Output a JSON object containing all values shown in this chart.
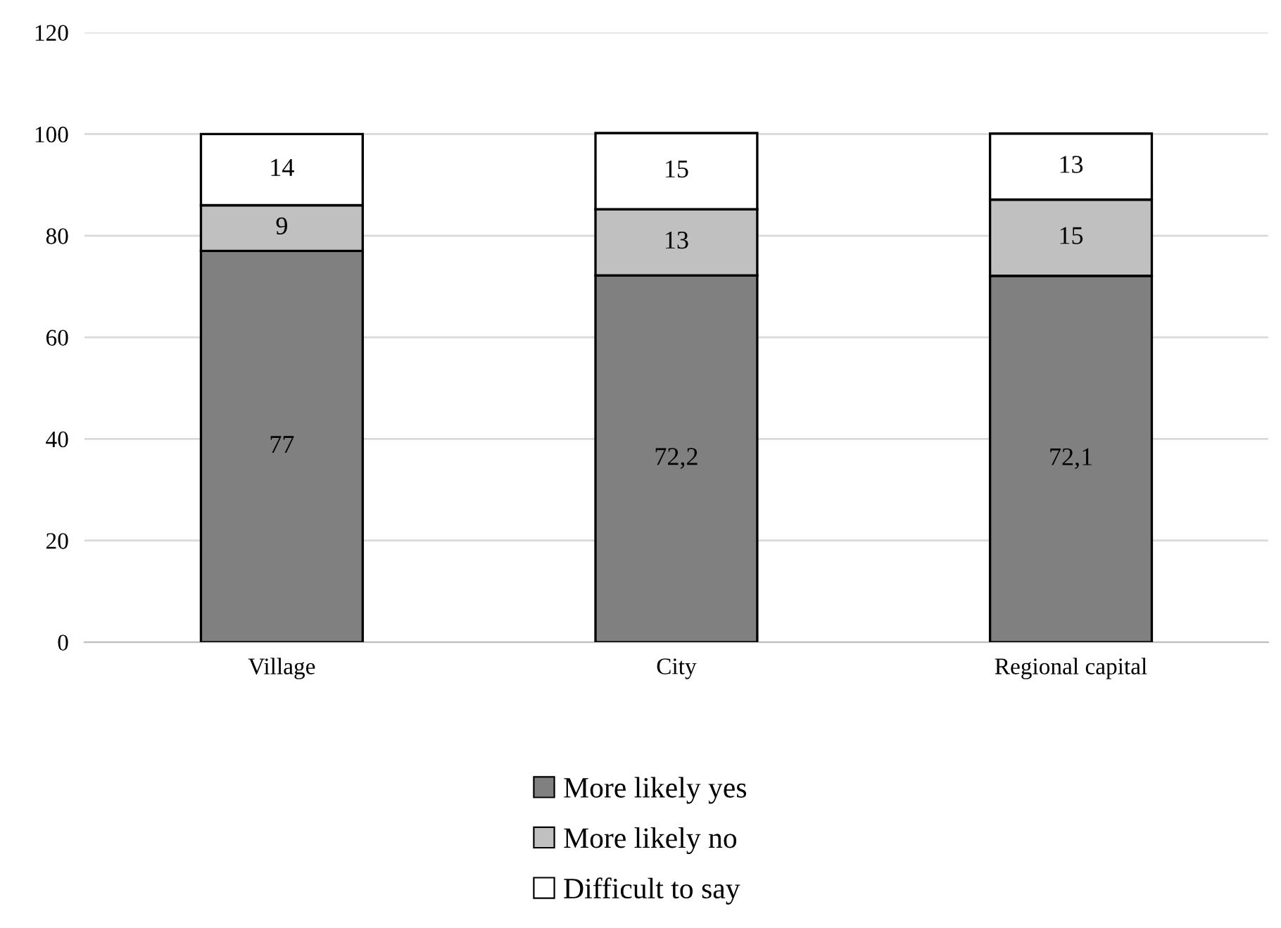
{
  "chart_data": {
    "type": "bar",
    "stacked": true,
    "categories": [
      "Village",
      "City",
      "Regional capital"
    ],
    "series": [
      {
        "name": "More likely yes",
        "color": "#808080",
        "values": [
          77,
          72.2,
          72.1
        ],
        "value_labels": [
          "77",
          "72,2",
          "72,1"
        ]
      },
      {
        "name": "More likely no",
        "color": "#c0c0c0",
        "values": [
          9,
          13,
          15
        ],
        "value_labels": [
          "9",
          "13",
          "15"
        ]
      },
      {
        "name": "Difficult to say",
        "color": "#ffffff",
        "values": [
          14,
          15,
          13
        ],
        "value_labels": [
          "14",
          "15",
          "13"
        ]
      }
    ],
    "ylim": [
      0,
      120
    ],
    "yticks": [
      0,
      20,
      40,
      60,
      80,
      100,
      120
    ],
    "grid": "y",
    "legend": "bottom"
  }
}
